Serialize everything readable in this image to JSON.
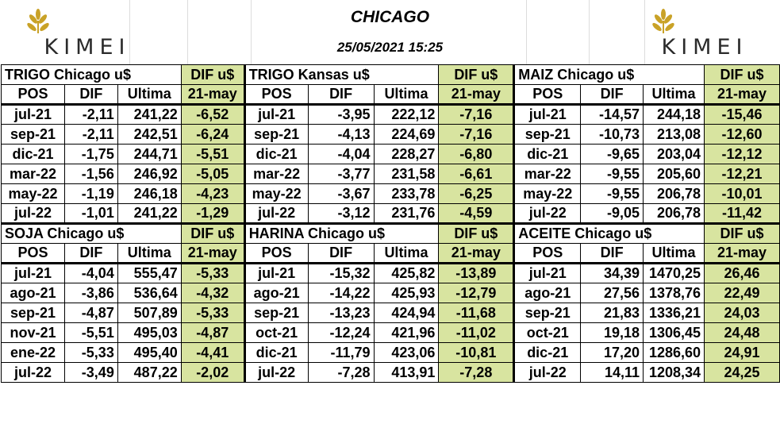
{
  "header": {
    "title": "CHICAGO",
    "datetime": "25/05/2021 15:25",
    "logo_text": "KIMEI"
  },
  "colors": {
    "negative": "#e00000",
    "positive": "#1a2fb8",
    "dif_column": "#d8e4a0"
  },
  "columns": {
    "pos": "POS",
    "dif": "DIF",
    "last": "Ultima",
    "dif_date": "21-may"
  },
  "blocks": [
    {
      "title": "TRIGO Chicago u$",
      "dif_header": "DIF u$",
      "rows": [
        {
          "pos": "jul-21",
          "dif": "-2,11",
          "last": "241,22",
          "dif2": "-6,52"
        },
        {
          "pos": "sep-21",
          "dif": "-2,11",
          "last": "242,51",
          "dif2": "-6,24"
        },
        {
          "pos": "dic-21",
          "dif": "-1,75",
          "last": "244,71",
          "dif2": "-5,51"
        },
        {
          "pos": "mar-22",
          "dif": "-1,56",
          "last": "246,92",
          "dif2": "-5,05"
        },
        {
          "pos": "may-22",
          "dif": "-1,19",
          "last": "246,18",
          "dif2": "-4,23"
        },
        {
          "pos": "jul-22",
          "dif": "-1,01",
          "last": "241,22",
          "dif2": "-1,29"
        }
      ]
    },
    {
      "title": "TRIGO Kansas u$",
      "dif_header": "DIF u$",
      "rows": [
        {
          "pos": "jul-21",
          "dif": "-3,95",
          "last": "222,12",
          "dif2": "-7,16"
        },
        {
          "pos": "sep-21",
          "dif": "-4,13",
          "last": "224,69",
          "dif2": "-7,16"
        },
        {
          "pos": "dic-21",
          "dif": "-4,04",
          "last": "228,27",
          "dif2": "-6,80"
        },
        {
          "pos": "mar-22",
          "dif": "-3,77",
          "last": "231,58",
          "dif2": "-6,61"
        },
        {
          "pos": "may-22",
          "dif": "-3,67",
          "last": "233,78",
          "dif2": "-6,25"
        },
        {
          "pos": "jul-22",
          "dif": "-3,12",
          "last": "231,76",
          "dif2": "-4,59"
        }
      ]
    },
    {
      "title": "MAIZ Chicago u$",
      "dif_header": "DIF u$",
      "rows": [
        {
          "pos": "jul-21",
          "dif": "-14,57",
          "last": "244,18",
          "dif2": "-15,46"
        },
        {
          "pos": "sep-21",
          "dif": "-10,73",
          "last": "213,08",
          "dif2": "-12,60"
        },
        {
          "pos": "dic-21",
          "dif": "-9,65",
          "last": "203,04",
          "dif2": "-12,12"
        },
        {
          "pos": "mar-22",
          "dif": "-9,55",
          "last": "205,60",
          "dif2": "-12,21"
        },
        {
          "pos": "may-22",
          "dif": "-9,55",
          "last": "206,78",
          "dif2": "-10,01"
        },
        {
          "pos": "jul-22",
          "dif": "-9,05",
          "last": "206,78",
          "dif2": "-11,42"
        }
      ]
    },
    {
      "title": "SOJA Chicago u$",
      "dif_header": "DIF u$",
      "rows": [
        {
          "pos": "jul-21",
          "dif": "-4,04",
          "last": "555,47",
          "dif2": "-5,33"
        },
        {
          "pos": "ago-21",
          "dif": "-3,86",
          "last": "536,64",
          "dif2": "-4,32"
        },
        {
          "pos": "sep-21",
          "dif": "-4,87",
          "last": "507,89",
          "dif2": "-5,33"
        },
        {
          "pos": "nov-21",
          "dif": "-5,51",
          "last": "495,03",
          "dif2": "-4,87"
        },
        {
          "pos": "ene-22",
          "dif": "-5,33",
          "last": "495,40",
          "dif2": "-4,41"
        },
        {
          "pos": "jul-22",
          "dif": "-3,49",
          "last": "487,22",
          "dif2": "-2,02"
        }
      ]
    },
    {
      "title": "HARINA Chicago u$",
      "dif_header": "DIF u$",
      "rows": [
        {
          "pos": "jul-21",
          "dif": "-15,32",
          "last": "425,82",
          "dif2": "-13,89"
        },
        {
          "pos": "ago-21",
          "dif": "-14,22",
          "last": "425,93",
          "dif2": "-12,79"
        },
        {
          "pos": "sep-21",
          "dif": "-13,23",
          "last": "424,94",
          "dif2": "-11,68"
        },
        {
          "pos": "oct-21",
          "dif": "-12,24",
          "last": "421,96",
          "dif2": "-11,02"
        },
        {
          "pos": "dic-21",
          "dif": "-11,79",
          "last": "423,06",
          "dif2": "-10,81"
        },
        {
          "pos": "jul-22",
          "dif": "-7,28",
          "last": "413,91",
          "dif2": "-7,28"
        }
      ]
    },
    {
      "title": "ACEITE Chicago u$",
      "dif_header": "DIF u$",
      "rows": [
        {
          "pos": "jul-21",
          "dif": "34,39",
          "last": "1470,25",
          "dif2": "26,46"
        },
        {
          "pos": "ago-21",
          "dif": "27,56",
          "last": "1378,76",
          "dif2": "22,49"
        },
        {
          "pos": "sep-21",
          "dif": "21,83",
          "last": "1336,21",
          "dif2": "24,03"
        },
        {
          "pos": "oct-21",
          "dif": "19,18",
          "last": "1306,45",
          "dif2": "24,48"
        },
        {
          "pos": "dic-21",
          "dif": "17,20",
          "last": "1286,60",
          "dif2": "24,91"
        },
        {
          "pos": "jul-22",
          "dif": "14,11",
          "last": "1208,34",
          "dif2": "24,25"
        }
      ]
    }
  ]
}
